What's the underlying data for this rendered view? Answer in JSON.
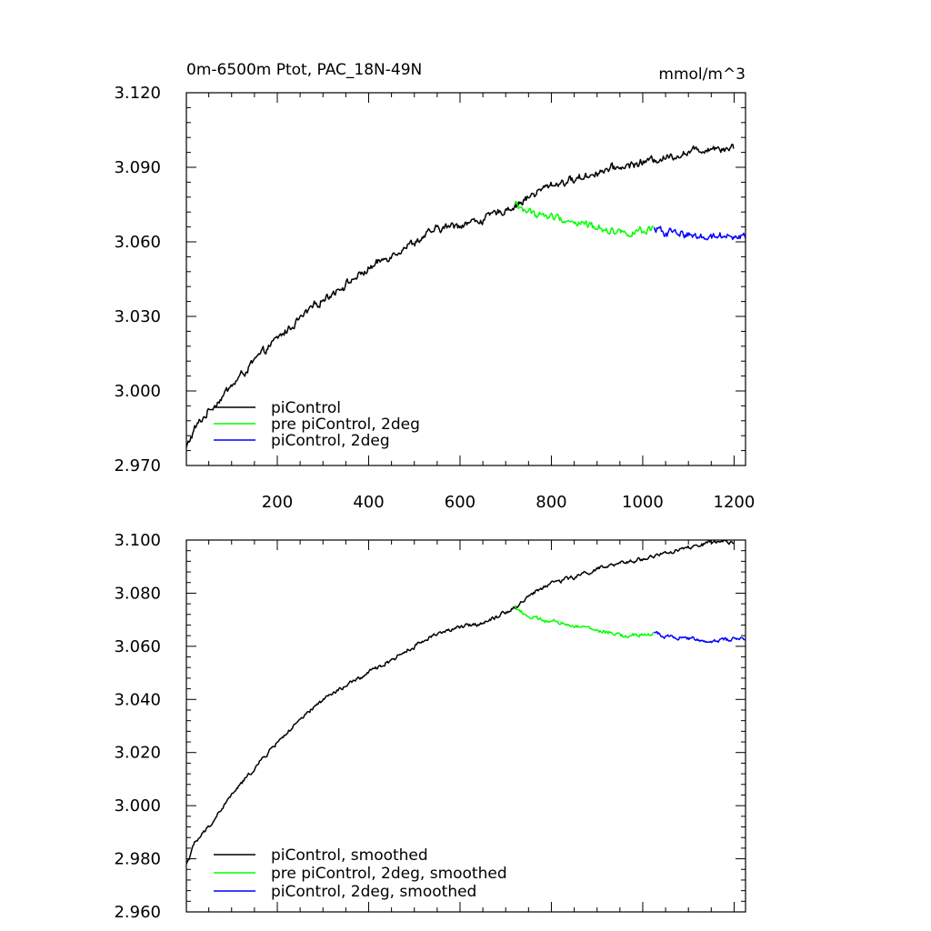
{
  "chart_data": [
    {
      "type": "line",
      "title": "0m-6500m Ptot, PAC_18N-49N",
      "units": "mmol/m^3",
      "xlabel": "",
      "ylabel": "",
      "xlim": [
        1,
        1225
      ],
      "ylim": [
        2.97,
        3.12
      ],
      "x_ticks": [
        200,
        400,
        600,
        800,
        1000,
        1200
      ],
      "x_tick_labels": [
        "200",
        "400",
        "600",
        "800",
        "1000",
        "1200"
      ],
      "y_ticks": [
        2.97,
        3.0,
        3.03,
        3.06,
        3.09,
        3.12
      ],
      "y_tick_labels": [
        "2.970",
        "3.000",
        "3.030",
        "3.060",
        "3.090",
        "3.120"
      ],
      "legend_position": "bottom-left",
      "noise_amplitude": 0.0012,
      "series": [
        {
          "name": "piControl",
          "color": "#000000",
          "x": [
            1,
            20,
            50,
            100,
            150,
            200,
            250,
            300,
            350,
            400,
            450,
            500,
            550,
            600,
            650,
            700,
            725,
            750,
            800,
            850,
            900,
            950,
            1000,
            1050,
            1100,
            1150,
            1200
          ],
          "y": [
            2.977,
            2.985,
            2.992,
            3.002,
            3.012,
            3.021,
            3.029,
            3.037,
            3.043,
            3.049,
            3.055,
            3.06,
            3.065,
            3.067,
            3.069,
            3.073,
            3.075,
            3.078,
            3.083,
            3.085,
            3.088,
            3.09,
            3.092,
            3.094,
            3.096,
            3.098,
            3.098
          ]
        },
        {
          "name": "pre piControl, 2deg",
          "color": "#00ff00",
          "x": [
            720,
            750,
            800,
            850,
            900,
            950,
            1000,
            1025
          ],
          "y": [
            3.075,
            3.072,
            3.07,
            3.068,
            3.066,
            3.064,
            3.064,
            3.065
          ]
        },
        {
          "name": "piControl, 2deg",
          "color": "#0000ff",
          "x": [
            1025,
            1050,
            1100,
            1150,
            1200,
            1225
          ],
          "y": [
            3.065,
            3.064,
            3.063,
            3.062,
            3.063,
            3.062
          ]
        }
      ]
    },
    {
      "type": "line",
      "title": "",
      "xlabel": "",
      "ylabel": "",
      "xlim": [
        1,
        1225
      ],
      "ylim": [
        2.96,
        3.1
      ],
      "x_ticks": [
        200,
        400,
        600,
        800,
        1000,
        1200
      ],
      "y_ticks": [
        2.96,
        2.98,
        3.0,
        3.02,
        3.04,
        3.06,
        3.08,
        3.1
      ],
      "y_tick_labels": [
        "2.960",
        "2.980",
        "3.000",
        "3.020",
        "3.040",
        "3.060",
        "3.080",
        "3.100"
      ],
      "legend_position": "bottom-left",
      "noise_amplitude": 0.0006,
      "series": [
        {
          "name": "piControl, smoothed",
          "color": "#000000",
          "x": [
            1,
            20,
            50,
            100,
            150,
            200,
            250,
            300,
            350,
            400,
            450,
            500,
            550,
            600,
            650,
            700,
            725,
            750,
            800,
            850,
            900,
            950,
            1000,
            1050,
            1100,
            1150,
            1200
          ],
          "y": [
            2.978,
            2.986,
            2.992,
            3.004,
            3.014,
            3.024,
            3.032,
            3.04,
            3.045,
            3.05,
            3.055,
            3.06,
            3.065,
            3.067,
            3.069,
            3.073,
            3.075,
            3.079,
            3.084,
            3.086,
            3.089,
            3.091,
            3.093,
            3.095,
            3.097,
            3.099,
            3.099
          ]
        },
        {
          "name": "pre piControl, 2deg, smoothed",
          "color": "#00ff00",
          "x": [
            720,
            750,
            800,
            850,
            900,
            950,
            1000,
            1025
          ],
          "y": [
            3.075,
            3.071,
            3.069,
            3.068,
            3.066,
            3.064,
            3.064,
            3.065
          ]
        },
        {
          "name": "piControl, 2deg, smoothed",
          "color": "#0000ff",
          "x": [
            1025,
            1050,
            1100,
            1150,
            1200,
            1225
          ],
          "y": [
            3.065,
            3.064,
            3.063,
            3.062,
            3.063,
            3.062
          ]
        }
      ]
    }
  ]
}
